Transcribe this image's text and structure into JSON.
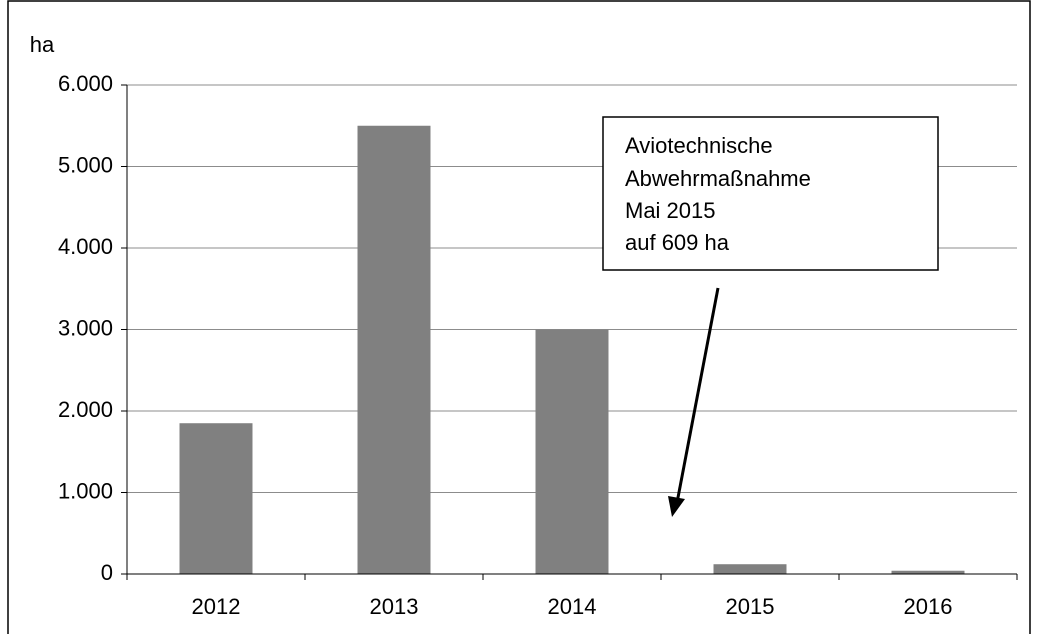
{
  "chart_data": {
    "type": "bar",
    "y_label": "ha",
    "categories": [
      "2012",
      "2013",
      "2014",
      "2015",
      "2016"
    ],
    "values": [
      1850,
      5500,
      3000,
      120,
      40
    ],
    "color": "#808080",
    "ylim": [
      0,
      6000
    ],
    "yticks": [
      0,
      {
        "value": 1000,
        "label": "1.000"
      },
      {
        "value": 2000,
        "label": "2.000"
      },
      {
        "value": 3000,
        "label": "3.000"
      },
      {
        "value": 4000,
        "label": "4.000"
      },
      {
        "value": 5000,
        "label": "5.000"
      },
      {
        "value": 6000,
        "label": "6.000"
      }
    ],
    "grid": true,
    "annotation": [
      "Aviotechnische",
      "Abwehrmaßnahme",
      "Mai 2015",
      "auf 609 ha"
    ]
  }
}
